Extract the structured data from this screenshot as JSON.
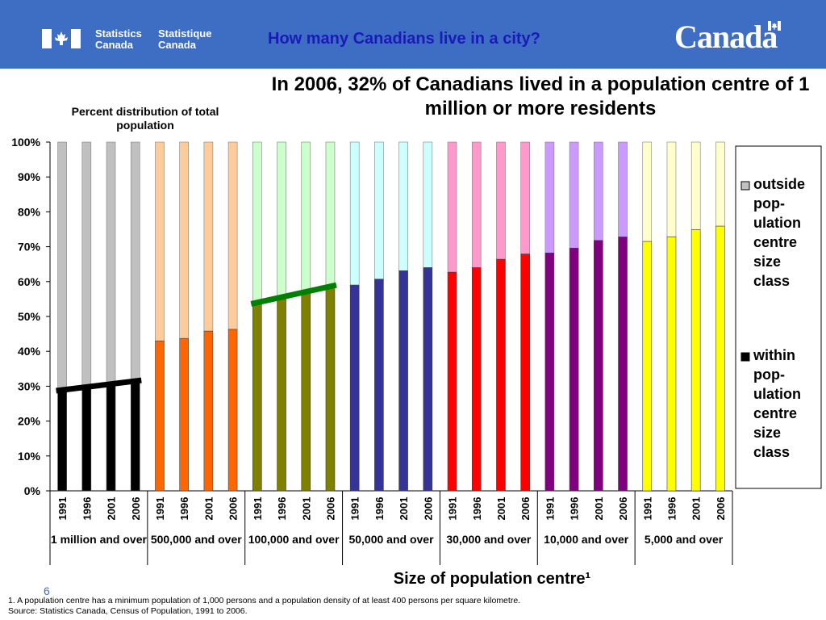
{
  "header": {
    "agency_en": [
      "Statistics",
      "Canada"
    ],
    "agency_fr": [
      "Statistique",
      "Canada"
    ],
    "title": "How many Canadians live in a city?",
    "wordmark": "Canada"
  },
  "slide_number": "6",
  "footnotes": {
    "line1": "1.  A population centre has a minimum population  of 1,000 persons and a population density of at least 400 persons per square kilometre.",
    "line2": "Source: Statistics Canada, Census of Population, 1991 to 2006."
  },
  "chart_data": {
    "type": "bar",
    "stacked": true,
    "title": "In 2006, 32% of Canadians lived in a population centre of 1 million or more residents",
    "ylabel": "Percent distribution of total population",
    "xlabel": "Size of population centre¹",
    "ylim": [
      0,
      100
    ],
    "y_ticks": [
      "0%",
      "10%",
      "20%",
      "30%",
      "40%",
      "50%",
      "60%",
      "70%",
      "80%",
      "90%",
      "100%"
    ],
    "grid": false,
    "legend_position": "right",
    "legend": [
      {
        "label": "outside pop-ulation centre size class",
        "color": "#c0c0c0"
      },
      {
        "label": "within pop-ulation centre size class",
        "color": "#000000"
      }
    ],
    "years": [
      "1991",
      "1996",
      "2001",
      "2006"
    ],
    "groups": [
      {
        "label": "1 million and over",
        "within": [
          28.7,
          29.3,
          30.9,
          31.7
        ],
        "within_color": "#000000",
        "outside_color": "#c0c0c0"
      },
      {
        "label": "500,000 and over",
        "within": [
          43.0,
          43.7,
          45.8,
          46.3
        ],
        "within_color": "#ff6600",
        "outside_color": "#ffcc99"
      },
      {
        "label": "100,000 and over",
        "within": [
          53.6,
          55.0,
          57.4,
          59.0
        ],
        "within_color": "#808000",
        "outside_color": "#ccffcc"
      },
      {
        "label": "50,000 and over",
        "within": [
          59.0,
          60.7,
          63.1,
          64.0
        ],
        "within_color": "#333399",
        "outside_color": "#ccffff"
      },
      {
        "label": "30,000 and over",
        "within": [
          62.7,
          64.0,
          66.4,
          67.9
        ],
        "within_color": "#ff0000",
        "outside_color": "#ff99cc"
      },
      {
        "label": "10,000 and over",
        "within": [
          68.2,
          69.6,
          71.8,
          72.8
        ],
        "within_color": "#800080",
        "outside_color": "#cc99ff"
      },
      {
        "label": "5,000 and over",
        "within": [
          71.5,
          72.8,
          74.9,
          75.9
        ],
        "within_color": "#ffff00",
        "outside_color": "#ffffcc"
      }
    ],
    "trend_lines": [
      {
        "group": 0,
        "from": 28.7,
        "to": 31.7,
        "color": "#000000"
      },
      {
        "group": 2,
        "from": 53.6,
        "to": 59.0,
        "color": "#008000"
      }
    ]
  }
}
